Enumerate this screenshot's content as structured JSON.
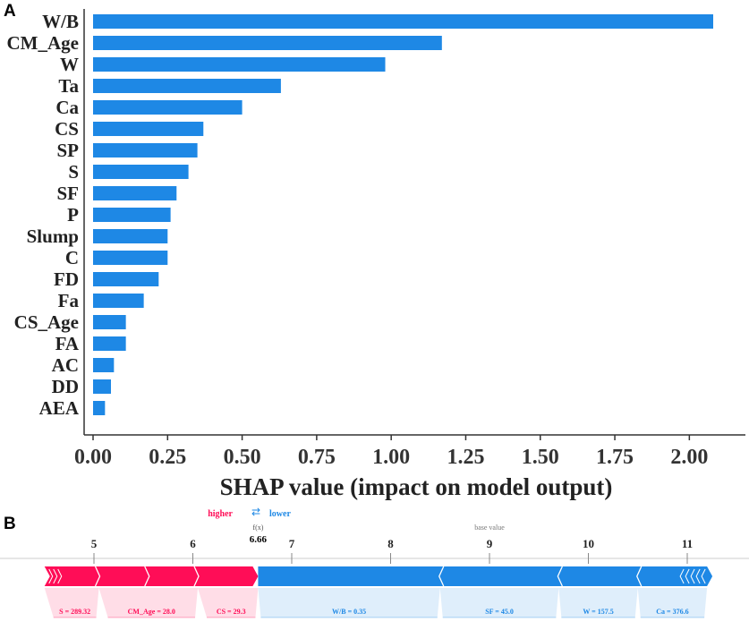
{
  "panel_a_label": "A",
  "panel_b_label": "B",
  "colors": {
    "bar": "#1E88E5",
    "higher": "#FF0D57",
    "lower": "#1E88E5",
    "axis": "#333333"
  },
  "chart_data": [
    {
      "type": "bar",
      "orientation": "horizontal",
      "title": "",
      "xlabel": "SHAP value (impact on model output)",
      "ylabel": "",
      "xlim": [
        0.0,
        2.1
      ],
      "xticks": [
        0.0,
        0.25,
        0.5,
        0.75,
        1.0,
        1.25,
        1.5,
        1.75,
        2.0
      ],
      "xtick_labels": [
        "0.00",
        "0.25",
        "0.50",
        "0.75",
        "1.00",
        "1.25",
        "1.50",
        "1.75",
        "2.00"
      ],
      "categories": [
        "W/B",
        "CM_Age",
        "W",
        "Ta",
        "Ca",
        "CS",
        "SP",
        "S",
        "SF",
        "P",
        "Slump",
        "C",
        "FD",
        "Fa",
        "CS_Age",
        "FA",
        "AC",
        "DD",
        "AEA"
      ],
      "values": [
        2.08,
        1.17,
        0.98,
        0.63,
        0.5,
        0.37,
        0.35,
        0.32,
        0.28,
        0.26,
        0.25,
        0.25,
        0.22,
        0.17,
        0.11,
        0.11,
        0.07,
        0.06,
        0.04
      ]
    },
    {
      "type": "force",
      "xlim": [
        4.45,
        11.45
      ],
      "xticks": [
        5,
        6,
        7,
        8,
        9,
        10,
        11
      ],
      "xtick_labels": [
        "5",
        "6",
        "7",
        "8",
        "9",
        "10",
        "11"
      ],
      "higher_label": "higher",
      "lower_label": "lower",
      "arrows_glyph": "⇄",
      "fx_label": "f(x)",
      "fx_value": 6.66,
      "fx_value_label": "6.66",
      "base_value_label": "base value",
      "base_value": 9.0,
      "red_start": 4.5,
      "blue_end": 11.2,
      "red_dividers": [
        5.05,
        5.55,
        6.05
      ],
      "blue_dividers": [
        8.5,
        9.7,
        10.5
      ],
      "red_features": [
        {
          "label": "S = 289.32",
          "start": 4.5,
          "end": 5.05
        },
        {
          "label": "CM_Age = 28.0",
          "start": 5.05,
          "end": 6.05
        },
        {
          "label": "CS = 29.3",
          "start": 6.05,
          "end": 6.66
        }
      ],
      "blue_features": [
        {
          "label": "W/B = 0.35",
          "start": 6.66,
          "end": 8.5
        },
        {
          "label": "SF = 45.0",
          "start": 8.5,
          "end": 9.7
        },
        {
          "label": "W = 157.5",
          "start": 9.7,
          "end": 10.5
        },
        {
          "label": "Ca = 376.6",
          "start": 10.5,
          "end": 11.2
        }
      ]
    }
  ]
}
